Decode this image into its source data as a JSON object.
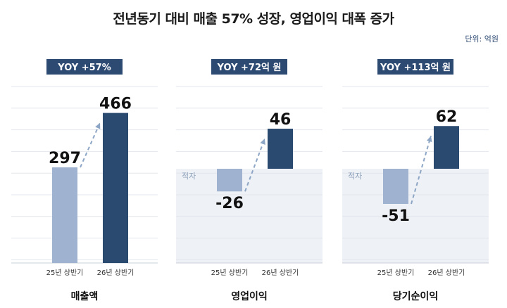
{
  "title": "전년동기 대비 매출 57% 성장, 영업이익 대폭 증가",
  "unit": "단위: 억원",
  "colors": {
    "bar_prev": "#9fb3d1",
    "bar_curr": "#2b4a70",
    "badge_bg": "#2d4a72",
    "badge_text": "#ffffff",
    "grid": "#e2e6ec",
    "deficit_bg": "#eef1f5",
    "arrow": "#8ea6c6",
    "deficit_text": "#8fa3bd"
  },
  "chart_data": [
    {
      "type": "bar",
      "title": "매출액",
      "badge": "YOY +57%",
      "categories": [
        "25년 상반기",
        "26년 상반기"
      ],
      "values": [
        297,
        466
      ],
      "value_labels": [
        "297",
        "466"
      ],
      "deficit_label": ""
    },
    {
      "type": "bar",
      "title": "영업이익",
      "badge": "YOY +72억 원",
      "categories": [
        "25년 상반기",
        "26년 상반기"
      ],
      "values": [
        -26,
        46
      ],
      "value_labels": [
        "-26",
        "46"
      ],
      "deficit_label": "적자"
    },
    {
      "type": "bar",
      "title": "당기순이익",
      "badge": "YOY +113억 원",
      "categories": [
        "25년 상반기",
        "26년 상반기"
      ],
      "values": [
        -51,
        62
      ],
      "value_labels": [
        "-51",
        "62"
      ],
      "deficit_label": "적자"
    }
  ]
}
